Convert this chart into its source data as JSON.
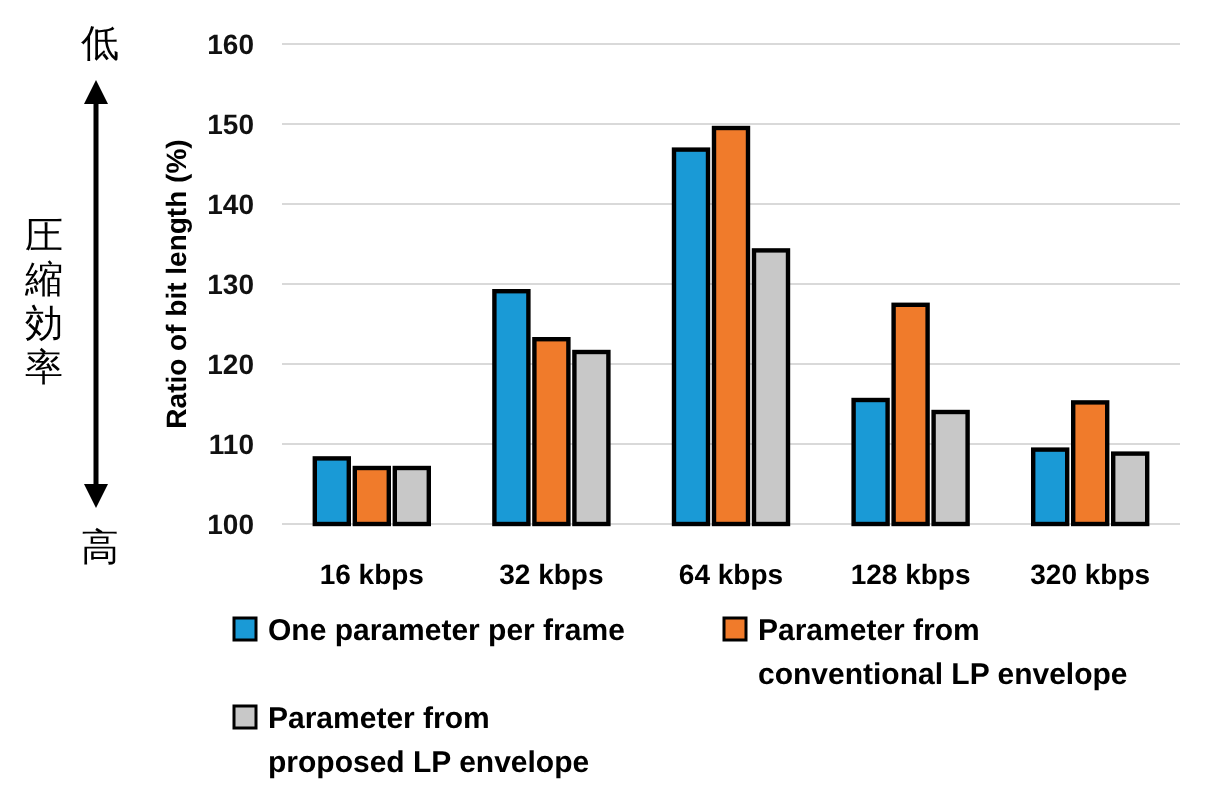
{
  "chart_data": {
    "type": "bar",
    "ylabel": "Ratio of bit length (%)",
    "categories": [
      "16 kbps",
      "32 kbps",
      "64 kbps",
      "128 kbps",
      "320 kbps"
    ],
    "series": [
      {
        "name": "One parameter per frame",
        "color": "#1a9ad6",
        "values": [
          108.2,
          129.1,
          146.8,
          115.5,
          109.3
        ]
      },
      {
        "name": "Parameter from conventional LP envelope",
        "color": "#f07b2b",
        "values": [
          107.0,
          123.1,
          149.5,
          127.4,
          115.2
        ]
      },
      {
        "name": "Parameter from proposed LP envelope",
        "color": "#c8c8c8",
        "values": [
          107.0,
          121.5,
          134.2,
          114.0,
          108.8
        ]
      }
    ],
    "ylim": [
      100,
      160
    ],
    "yticks": [
      100,
      110,
      120,
      130,
      140,
      150,
      160
    ],
    "grid": "y",
    "legend": "bottom",
    "annotations": [
      "低",
      "圧縮効率",
      "高"
    ]
  }
}
